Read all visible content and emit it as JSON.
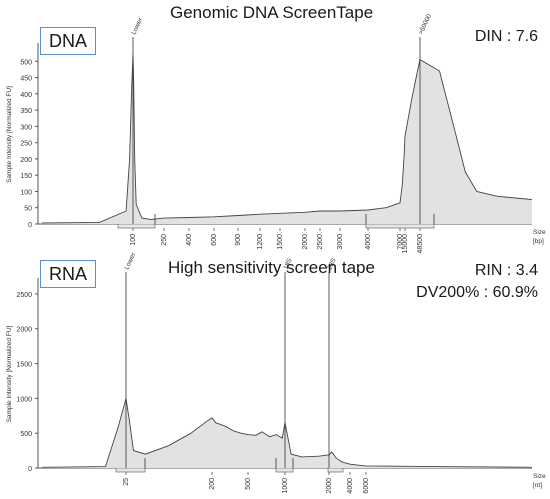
{
  "chart_data": [
    {
      "type": "line",
      "label_box": "DNA",
      "title": "Genomic DNA ScreenTape",
      "metrics": [
        "DIN : 7.6"
      ],
      "ylabel": "Sample Intensity [Normalized FU]",
      "xlabel": "Size",
      "xunit": "[bp]",
      "ylim": [
        0,
        550
      ],
      "yticks": [
        "0",
        "50",
        "100",
        "150",
        "200",
        "250",
        "300",
        "350",
        "400",
        "450",
        "500"
      ],
      "xticks": [
        "100",
        "250",
        "400",
        "600",
        "900",
        "1200",
        "1500",
        "2000",
        "2500",
        "3000",
        "4000",
        "7000",
        "15000",
        "48500"
      ],
      "peak_labels": [
        {
          "text": "Lower",
          "x": 100
        },
        {
          "text": ">60000",
          "x": 48500
        }
      ],
      "x": [
        25,
        60,
        90,
        95,
        98,
        100,
        102,
        105,
        110,
        130,
        170,
        250,
        400,
        600,
        900,
        1200,
        1500,
        2000,
        2500,
        3000,
        4000,
        5500,
        7000,
        10000,
        13000,
        15000,
        25000,
        40000,
        48500,
        55000,
        60000,
        65000,
        70000,
        80000,
        90000,
        100000
      ],
      "y": [
        3,
        5,
        40,
        200,
        420,
        520,
        430,
        200,
        60,
        18,
        14,
        18,
        20,
        22,
        26,
        30,
        33,
        36,
        40,
        40,
        43,
        50,
        65,
        120,
        210,
        270,
        380,
        470,
        505,
        470,
        310,
        160,
        100,
        85,
        80,
        75
      ]
    },
    {
      "type": "line",
      "label_box": "RNA",
      "title": "High sensitivity screen tape",
      "metrics": [
        "RIN : 3.4",
        "DV200% : 60.9%"
      ],
      "ylabel": "Sample Intensity [Normalized FU]",
      "xlabel": "Size",
      "xunit": "[nt]",
      "ylim": [
        0,
        2700
      ],
      "yticks": [
        "0",
        "500",
        "1000",
        "1500",
        "2000",
        "2500"
      ],
      "xticks": [
        "25",
        "200",
        "500",
        "1000",
        "2000",
        "4000",
        "6000"
      ],
      "peak_labels": [
        {
          "text": "Lower",
          "x": 25
        },
        {
          "text": "18S",
          "x": 1000
        },
        {
          "text": "28S",
          "x": 2000
        }
      ],
      "x": [
        10,
        20,
        23,
        25,
        27,
        30,
        40,
        70,
        120,
        180,
        200,
        220,
        280,
        350,
        420,
        500,
        580,
        650,
        750,
        850,
        950,
        1000,
        1100,
        1300,
        1700,
        2000,
        2200,
        2500,
        3000,
        3500,
        4000,
        5000,
        6000,
        8000,
        12000
      ],
      "y": [
        10,
        20,
        600,
        1000,
        700,
        250,
        200,
        320,
        500,
        680,
        720,
        650,
        600,
        530,
        500,
        480,
        470,
        520,
        450,
        480,
        430,
        650,
        200,
        160,
        170,
        190,
        230,
        150,
        90,
        70,
        55,
        40,
        30,
        20,
        10
      ]
    }
  ]
}
